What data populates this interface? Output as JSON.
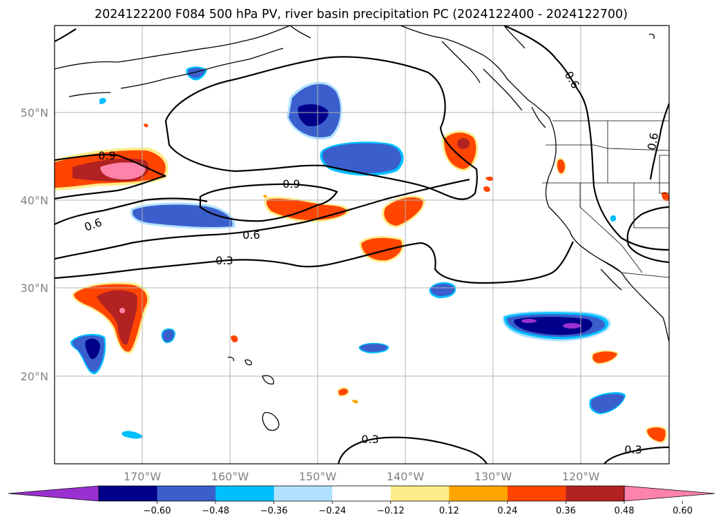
{
  "title": "2024122200 F084 500 hPa PV, river basin precipitation PC (2024122400 - 2024122700)",
  "map": {
    "lon_labels": [
      "170°W",
      "160°W",
      "150°W",
      "140°W",
      "130°W",
      "120°W"
    ],
    "lat_labels": [
      "50°N",
      "40°N",
      "30°N",
      "20°N"
    ],
    "contour_labels": [
      "0.9",
      "0.9",
      "0.6",
      "0.6",
      "0.3",
      "0.6",
      "0.6",
      "0.3",
      "0.3"
    ]
  },
  "colorbar": {
    "ticks": [
      "−0.60",
      "−0.48",
      "−0.36",
      "−0.24",
      "−0.12",
      "0.12",
      "0.24",
      "0.36",
      "0.48",
      "0.60"
    ],
    "colors": [
      "#9b30d0",
      "#00008b",
      "#3a5fcd",
      "#00bfff",
      "#b0e2ff",
      "#ffffff",
      "#ffec8b",
      "#ffa500",
      "#ff4500",
      "#b22222",
      "#ff82ab"
    ],
    "extend": "both"
  }
}
